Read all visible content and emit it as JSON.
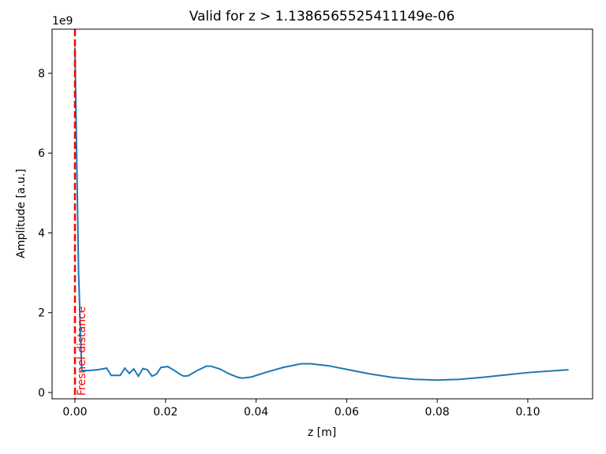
{
  "chart_data": {
    "type": "line",
    "title": "Valid for z > 1.1386565525411149e-06",
    "x_label": "z [m]",
    "y_label": "Amplitude [a.u.]",
    "y_offset_text": "1e9",
    "x": [
      0.0,
      0.0008,
      0.0015,
      0.003,
      0.005,
      0.007,
      0.008,
      0.01,
      0.011,
      0.012,
      0.013,
      0.014,
      0.015,
      0.016,
      0.017,
      0.018,
      0.019,
      0.0205,
      0.022,
      0.023,
      0.024,
      0.025,
      0.027,
      0.029,
      0.03,
      0.032,
      0.034,
      0.036,
      0.037,
      0.039,
      0.042,
      0.046,
      0.05,
      0.052,
      0.056,
      0.06,
      0.065,
      0.07,
      0.075,
      0.08,
      0.085,
      0.09,
      0.095,
      0.1,
      0.109
    ],
    "series": [
      {
        "color": "#1f77b4",
        "values": [
          8650000000,
          3000000000,
          550000000,
          550000000,
          570000000,
          610000000,
          430000000,
          430000000,
          610000000,
          480000000,
          590000000,
          410000000,
          600000000,
          570000000,
          410000000,
          460000000,
          630000000,
          650000000,
          550000000,
          470000000,
          410000000,
          420000000,
          550000000,
          660000000,
          660000000,
          590000000,
          470000000,
          380000000,
          360000000,
          390000000,
          500000000,
          630000000,
          720000000,
          720000000,
          670000000,
          580000000,
          470000000,
          380000000,
          330000000,
          310000000,
          330000000,
          380000000,
          440000000,
          500000000,
          570000000
        ]
      }
    ],
    "vline": {
      "x": 1.1386565525411149e-06,
      "label": "Fresnel distance",
      "color": "#ff0000"
    },
    "xlim": [
      -0.00505,
      0.1143
    ],
    "ylim": [
      -158000000,
      9106000000
    ],
    "xticks": [
      {
        "value": 0,
        "label": "0.00"
      },
      {
        "value": 0.02,
        "label": "0.02"
      },
      {
        "value": 0.04,
        "label": "0.04"
      },
      {
        "value": 0.06,
        "label": "0.06"
      },
      {
        "value": 0.08,
        "label": "0.08"
      },
      {
        "value": 0.1,
        "label": "0.10"
      }
    ],
    "yticks": [
      {
        "value": 0,
        "label": "0"
      },
      {
        "value": 2000000000,
        "label": "2"
      },
      {
        "value": 4000000000,
        "label": "4"
      },
      {
        "value": 6000000000,
        "label": "6"
      },
      {
        "value": 8000000000,
        "label": "8"
      }
    ]
  }
}
